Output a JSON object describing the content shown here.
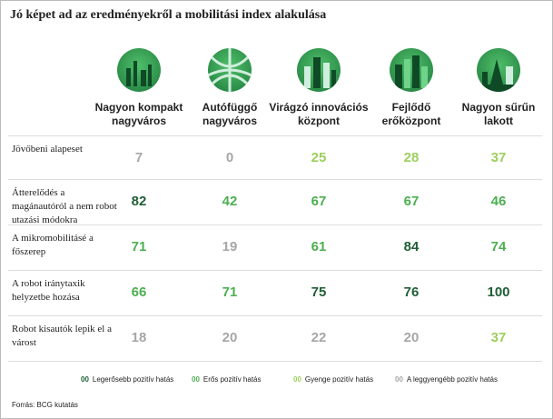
{
  "title": "Jó képet ad az eredményekről a mobilitási index alakulása",
  "columns": [
    "Nagyon kompakt nagyváros",
    "Autófüggő nagyváros",
    "Virágzó innovációs központ",
    "Fejlődő erőközpont",
    "Nagyon sűrűn lakott"
  ],
  "rows": [
    {
      "label": "Jövőbeni alapeset",
      "cells": [
        {
          "value": 7,
          "color": "#a6a6a6"
        },
        {
          "value": 0,
          "color": "#a6a6a6"
        },
        {
          "value": 25,
          "color": "#9ccf5c"
        },
        {
          "value": 28,
          "color": "#9ccf5c"
        },
        {
          "value": 37,
          "color": "#9ccf5c"
        }
      ]
    },
    {
      "label": "Átterelődés a magánautóról a nem robot utazási módokra",
      "cells": [
        {
          "value": 82,
          "color": "#1f5e36"
        },
        {
          "value": 42,
          "color": "#4caf50"
        },
        {
          "value": 67,
          "color": "#4caf50"
        },
        {
          "value": 67,
          "color": "#4caf50"
        },
        {
          "value": 46,
          "color": "#4caf50"
        }
      ]
    },
    {
      "label": "A mikromobilitásé a főszerep",
      "cells": [
        {
          "value": 71,
          "color": "#4caf50"
        },
        {
          "value": 19,
          "color": "#a6a6a6"
        },
        {
          "value": 61,
          "color": "#4caf50"
        },
        {
          "value": 84,
          "color": "#1f5e36"
        },
        {
          "value": 74,
          "color": "#4caf50"
        }
      ]
    },
    {
      "label": "A robot iránytaxik helyzetbe hozása",
      "cells": [
        {
          "value": 66,
          "color": "#4caf50"
        },
        {
          "value": 71,
          "color": "#4caf50"
        },
        {
          "value": 75,
          "color": "#1f5e36"
        },
        {
          "value": 76,
          "color": "#1f5e36"
        },
        {
          "value": 100,
          "color": "#1f5e36"
        }
      ]
    },
    {
      "label": "Robot kisautók lepik el a várost",
      "cells": [
        {
          "value": 18,
          "color": "#a6a6a6"
        },
        {
          "value": 20,
          "color": "#a6a6a6"
        },
        {
          "value": 22,
          "color": "#a6a6a6"
        },
        {
          "value": 20,
          "color": "#a6a6a6"
        },
        {
          "value": 37,
          "color": "#9ccf5c"
        }
      ]
    }
  ],
  "legend": [
    {
      "marker": "00",
      "label": "Legerősebb pozitív hatás",
      "color": "#1f5e36"
    },
    {
      "marker": "00",
      "label": "Erős pozitív hatás",
      "color": "#4caf50"
    },
    {
      "marker": "00",
      "label": "Gyenge pozitív hatás",
      "color": "#9ccf5c"
    },
    {
      "marker": "00",
      "label": "A leggyengébb pozitív hatás",
      "color": "#a6a6a6"
    }
  ],
  "source": "Forrás: BCG kutatás"
}
